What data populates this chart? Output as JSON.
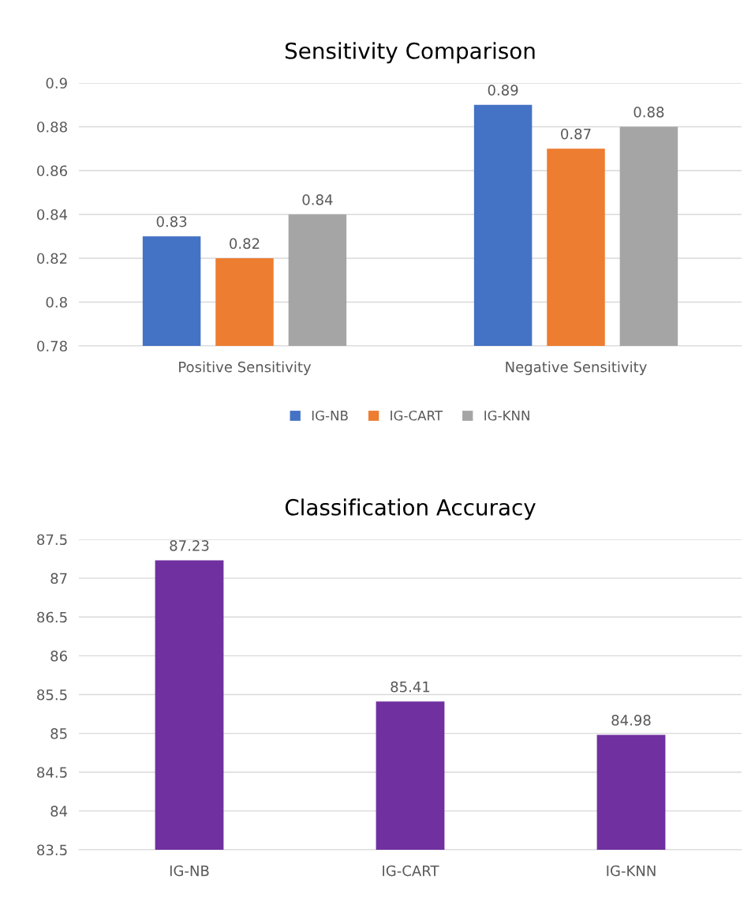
{
  "chart_data": [
    {
      "type": "bar",
      "title": "Sensitivity Comparison",
      "categories": [
        "Positive Sensitivity",
        "Negative Sensitivity"
      ],
      "series": [
        {
          "name": "IG-NB",
          "color": "#4472c4",
          "values": [
            0.83,
            0.89
          ]
        },
        {
          "name": "IG-CART",
          "color": "#ed7d31",
          "values": [
            0.82,
            0.87
          ]
        },
        {
          "name": "IG-KNN",
          "color": "#a5a5a5",
          "values": [
            0.84,
            0.88
          ]
        }
      ],
      "ylim": [
        0.78,
        0.9
      ],
      "yticks": [
        0.78,
        0.8,
        0.82,
        0.84,
        0.86,
        0.88,
        0.9
      ],
      "grid": "y",
      "legend": "bottom",
      "data_labels": true
    },
    {
      "type": "bar",
      "title": "Classification Accuracy",
      "categories": [
        "IG-NB",
        "IG-CART",
        "IG-KNN"
      ],
      "values": [
        87.23,
        85.41,
        84.98
      ],
      "color": "#7030a0",
      "ylim": [
        83.5,
        87.5
      ],
      "yticks": [
        83.5,
        84,
        84.5,
        85,
        85.5,
        86,
        86.5,
        87,
        87.5
      ],
      "grid": "y",
      "data_labels": true
    }
  ]
}
